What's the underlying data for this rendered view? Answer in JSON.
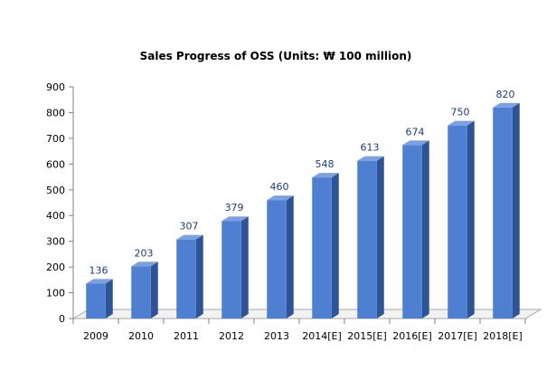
{
  "chart_data": {
    "type": "bar",
    "title": "Sales Progress of OSS (Units: ₩ 100 million)",
    "categories": [
      "2009",
      "2010",
      "2011",
      "2012",
      "2013",
      "2014[E]",
      "2015[E]",
      "2016[E]",
      "2017[E]",
      "2018[E]"
    ],
    "values": [
      136,
      203,
      307,
      379,
      460,
      548,
      613,
      674,
      750,
      820
    ],
    "data_labels": [
      "136",
      "203",
      "307",
      "379",
      "460",
      "548",
      "613",
      "674",
      "750",
      "820"
    ],
    "ylim": [
      0,
      900
    ],
    "y_ticks": [
      "0",
      "100",
      "200",
      "300",
      "400",
      "500",
      "600",
      "700",
      "800",
      "900"
    ],
    "xlabel": "",
    "ylabel": "",
    "grid": false,
    "legend": "none",
    "style": "3d-column",
    "colors": {
      "bar_front": "#4f7fd0",
      "bar_side": "#2d5496",
      "bar_top": "#7da1e0",
      "label": "#1f3c7a"
    }
  }
}
